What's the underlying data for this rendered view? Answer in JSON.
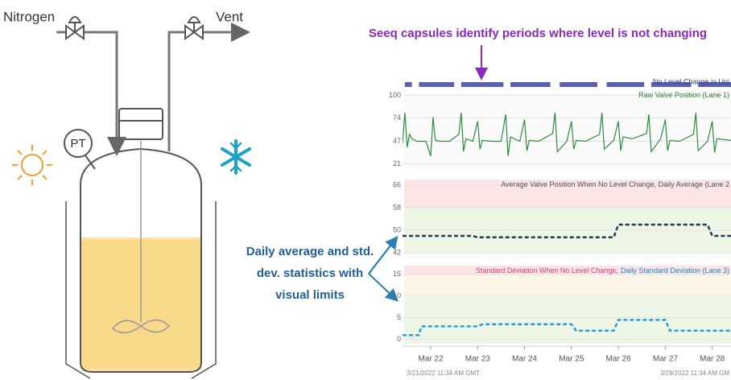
{
  "diagram": {
    "labels": {
      "nitrogen": "Nitrogen",
      "vent": "Vent",
      "pt": "PT"
    }
  },
  "annotations": {
    "capsules": "Seeq capsules identify periods where level is not changing",
    "statistics": [
      "Daily average and std.",
      "dev. statistics with",
      "visual limits"
    ]
  },
  "chart_data": {
    "type": "line",
    "xlim": [
      21.4,
      28.4
    ],
    "xticks": [
      {
        "value": 22,
        "label": "Mar 22"
      },
      {
        "value": 23,
        "label": "Mar 23"
      },
      {
        "value": 24,
        "label": "Mar 24"
      },
      {
        "value": 25,
        "label": "Mar 25"
      },
      {
        "value": 26,
        "label": "Mar 26"
      },
      {
        "value": 27,
        "label": "Mar 27"
      },
      {
        "value": 28,
        "label": "Mar 28"
      }
    ],
    "time_range": [
      "3/21/2022 11:34 AM GMT",
      "3/28/2022 11:34 AM GM"
    ],
    "capsule_lane": {
      "title": "No Level Change in Uni",
      "color": "#5b5fb0",
      "intervals": [
        [
          21.45,
          21.6
        ],
        [
          21.75,
          22.5
        ],
        [
          22.65,
          23.55
        ],
        [
          23.7,
          24.55
        ],
        [
          24.75,
          25.55
        ],
        [
          25.75,
          26.55
        ],
        [
          26.7,
          27.55
        ],
        [
          27.7,
          28.4
        ]
      ]
    },
    "lanes": [
      {
        "title": [
          "Raw Valve Position (Lane 1)"
        ],
        "title_colors": [
          "#2e7d32"
        ],
        "ylim": [
          14,
          106
        ],
        "yticks": [
          21,
          47,
          74,
          100
        ],
        "bands": [],
        "series": [
          {
            "color": "#2e8b3e",
            "dash": false,
            "x": [
              21.4,
              21.45,
              21.5,
              21.55,
              21.6,
              21.7,
              21.9,
              22.0,
              22.05,
              22.1,
              22.2,
              22.4,
              22.6,
              22.65,
              22.7,
              22.75,
              22.9,
              23.0,
              23.05,
              23.1,
              23.3,
              23.5,
              23.6,
              23.65,
              23.7,
              23.9,
              24.0,
              24.05,
              24.1,
              24.3,
              24.6,
              24.65,
              24.7,
              24.9,
              25.0,
              25.05,
              25.1,
              25.3,
              25.6,
              25.65,
              25.7,
              25.9,
              26.0,
              26.05,
              26.1,
              26.3,
              26.6,
              26.65,
              26.7,
              26.9,
              27.0,
              27.05,
              27.1,
              27.3,
              27.6,
              27.65,
              27.7,
              27.9,
              28.0,
              28.05,
              28.1,
              28.4
            ],
            "values": [
              45,
              80,
              40,
              55,
              50,
              47,
              47,
              30,
              75,
              48,
              47,
              47,
              55,
              80,
              35,
              50,
              47,
              70,
              38,
              48,
              47,
              47,
              78,
              30,
              52,
              47,
              72,
              36,
              48,
              47,
              56,
              80,
              35,
              47,
              70,
              38,
              48,
              47,
              55,
              80,
              38,
              48,
              70,
              36,
              52,
              50,
              56,
              78,
              35,
              50,
              72,
              36,
              48,
              47,
              55,
              80,
              36,
              47,
              70,
              34,
              50,
              48
            ]
          }
        ]
      },
      {
        "title": [
          "Average Valve Position When No Level Change, Daily Average (Lane 2"
        ],
        "title_colors": [
          "#555555"
        ],
        "ylim": [
          40,
          68
        ],
        "yticks": [
          42,
          50,
          58,
          66
        ],
        "bands": [
          {
            "range": [
              58,
              68
            ],
            "color": "#fbe4e4"
          },
          {
            "range": [
              42,
              58
            ],
            "color": "#eef6e6"
          }
        ],
        "series": [
          {
            "color": "#1f3b5c",
            "dash": true,
            "x": [
              21.4,
              22.9,
              23.0,
              25.9,
              26.0,
              27.9,
              28.0,
              28.4
            ],
            "values": [
              48,
              48,
              47.5,
              47.5,
              52,
              52,
              48,
              48
            ]
          }
        ]
      },
      {
        "title": [
          "Standard Deviation When No Level Change,",
          "Daily Standard Deviation (Lane 3)"
        ],
        "title_colors": [
          "#d0407a",
          "#1e88c8"
        ],
        "ylim": [
          -1,
          17
        ],
        "yticks": [
          0,
          5,
          10,
          15
        ],
        "bands": [
          {
            "range": [
              15,
              17
            ],
            "color": "#fbe4e4"
          },
          {
            "range": [
              10,
              15
            ],
            "color": "#fbf6e8"
          },
          {
            "range": [
              -1,
              10
            ],
            "color": "#eef6e6"
          }
        ],
        "series": [
          {
            "color": "#2a9fd8",
            "dash": true,
            "x": [
              21.4,
              21.75,
              21.8,
              23.0,
              23.1,
              25.0,
              25.1,
              25.9,
              26.0,
              27.0,
              27.1,
              28.4
            ],
            "values": [
              1,
              1,
              3,
              3,
              3.5,
              3.5,
              2,
              2,
              4.5,
              4.5,
              2,
              2
            ]
          }
        ]
      }
    ]
  }
}
